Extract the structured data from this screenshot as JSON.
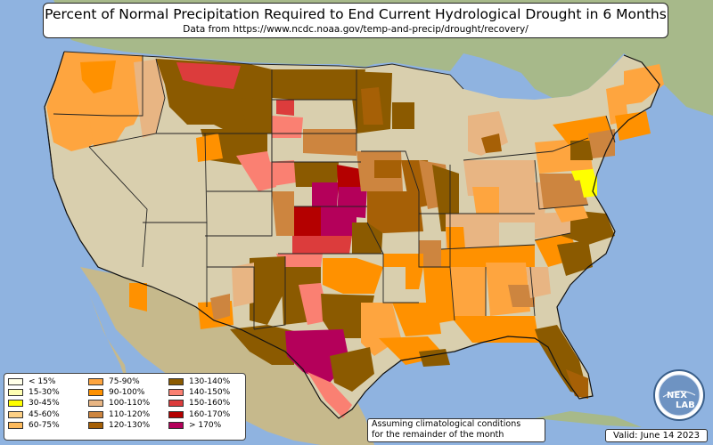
{
  "title": "Percent of Normal Precipitation Required to End Current Hydrological Drought in 6 Months",
  "subtitle": "Data from https://www.ncdc.noaa.gov/temp-and-precip/drought/recovery/",
  "note_line1": "Assuming climatological conditions",
  "note_line2": "for the remainder of the month",
  "valid": "Valid: June 14 2023",
  "logo_text": "NEX LAB",
  "legend": [
    {
      "label": "< 15%",
      "color": "#ffffe8"
    },
    {
      "label": "15-30%",
      "color": "#ffffb2"
    },
    {
      "label": "30-45%",
      "color": "#ffff00"
    },
    {
      "label": "45-60%",
      "color": "#fdd085"
    },
    {
      "label": "60-75%",
      "color": "#fdba5c"
    },
    {
      "label": "75-90%",
      "color": "#fea53f"
    },
    {
      "label": "90-100%",
      "color": "#ff9100"
    },
    {
      "label": "100-110%",
      "color": "#e8b583"
    },
    {
      "label": "110-120%",
      "color": "#cd853f"
    },
    {
      "label": "120-130%",
      "color": "#a66006"
    },
    {
      "label": "130-140%",
      "color": "#8b5a00"
    },
    {
      "label": "140-150%",
      "color": "#fa8072"
    },
    {
      "label": "150-160%",
      "color": "#dc3c3c"
    },
    {
      "label": "160-170%",
      "color": "#b40000"
    },
    {
      "label": "> 170%",
      "color": "#b4005a"
    }
  ]
}
